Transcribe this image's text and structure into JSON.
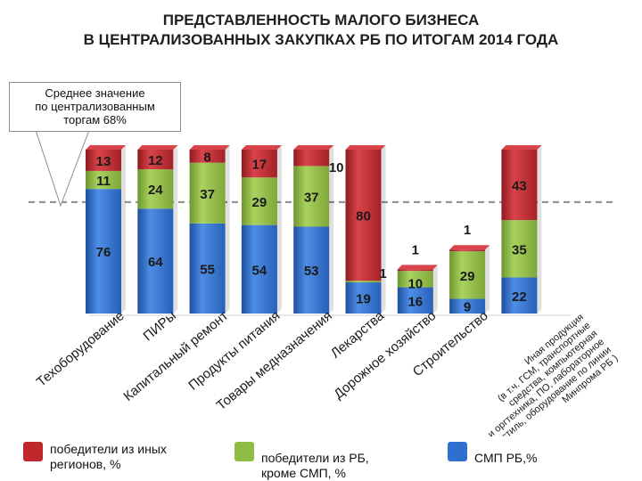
{
  "title": {
    "line1": "ПРЕДСТАВЛЕННОСТЬ МАЛОГО БИЗНЕСА",
    "line2": "В ЦЕНТРАЛИЗОВАННЫХ ЗАКУПКАХ РБ ПО ИТОГАМ 2014 ГОДА"
  },
  "callout": {
    "line1": "Среднее значение",
    "line2": "по централизованным",
    "line3": "торгам 68%"
  },
  "legend": {
    "red": "победители  из иных регионов, %",
    "green": "победители  из РБ, кроме СМП, %",
    "blue": "СМП РБ,%"
  },
  "colors": {
    "red": "#c0282d",
    "green": "#8fbc45",
    "blue": "#2f6fcf",
    "average_line": "#8a8a8a"
  },
  "chart_data": {
    "type": "bar",
    "stacked": true,
    "average_line": 68,
    "categories": [
      "Техоборудование",
      "ПИРы",
      "Капитальный ремонт",
      "Продукты питания",
      "Товары медназначения",
      "Лекарства",
      "Дорожное хозяйство",
      "Строительство",
      "Иная продукция (в т.ч. ГСМ, транспортные средства, компьютерная и оргтехника, ПО, лабораторное текстиль, оборудование по линии Минпрома РБ )"
    ],
    "series": [
      {
        "name": "СМП РБ,%",
        "color": "blue",
        "values": [
          76,
          64,
          55,
          54,
          53,
          19,
          16,
          9,
          22
        ],
        "labels": [
          "76",
          "64",
          "55",
          "54",
          "53",
          "19",
          "16",
          "9",
          "22"
        ]
      },
      {
        "name": "победители  из РБ, кроме СМП, %",
        "color": "green",
        "values": [
          11,
          24,
          37,
          29,
          37,
          1,
          10,
          29,
          35
        ],
        "labels": [
          "11",
          "24",
          "37",
          "29",
          "37",
          "1",
          "10",
          "29",
          "35"
        ]
      },
      {
        "name": "победители  из иных регионов, %",
        "color": "red",
        "values": [
          13,
          12,
          8,
          17,
          10,
          80,
          1,
          1,
          43
        ],
        "labels": [
          "13",
          "12",
          "8",
          "17",
          "10",
          "80",
          "1",
          "1",
          "43"
        ]
      }
    ],
    "ylim": [
      0,
      100
    ],
    "grid": false,
    "legend_position": "bottom"
  }
}
